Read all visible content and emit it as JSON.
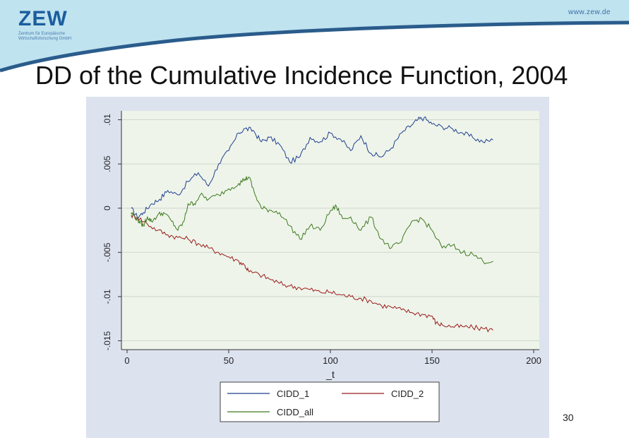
{
  "header": {
    "logo_text": "ZEW",
    "logo_subtitle": "Zentrum für Europäische Wirtschaftsforschung GmbH",
    "website": "www.zew.de"
  },
  "slide": {
    "title": "DD of the Cumulative Incidence Function, 2004",
    "page_number": "30"
  },
  "colors": {
    "banner": "#bfe3ef",
    "chart_background": "#dde2ef",
    "plot_background": "#eef4ea",
    "series_1": "#1f3f8f",
    "series_2": "#9b1c1c",
    "series_all": "#3f7a1f"
  },
  "chart_data": {
    "type": "line",
    "xlabel": "_t",
    "ylabel": "",
    "xlim": [
      0,
      200
    ],
    "ylim": [
      -0.016,
      0.011
    ],
    "x_ticks": [
      0,
      50,
      100,
      150,
      200
    ],
    "x_tick_labels": [
      "0",
      "50",
      "100",
      "150",
      "200"
    ],
    "y_ticks": [
      0.01,
      0.005,
      0,
      -0.005,
      -0.01,
      -0.015
    ],
    "y_tick_labels": [
      ".01",
      ".005",
      "0",
      "-.005",
      "-.01",
      "-.015"
    ],
    "grid": true,
    "legend_position": "bottom",
    "series": [
      {
        "name": "CIDD_1",
        "color": "#1f3f8f",
        "x": [
          2,
          5,
          8,
          12,
          16,
          20,
          25,
          30,
          35,
          40,
          45,
          50,
          55,
          58,
          62,
          66,
          70,
          75,
          80,
          85,
          90,
          95,
          100,
          105,
          110,
          115,
          120,
          125,
          130,
          135,
          140,
          143,
          146,
          150,
          155,
          160,
          165,
          170,
          175,
          180
        ],
        "y": [
          0.0,
          -0.001,
          -0.0005,
          0.0005,
          0.001,
          0.002,
          0.0015,
          0.003,
          0.004,
          0.0025,
          0.005,
          0.0065,
          0.0085,
          0.009,
          0.0088,
          0.0075,
          0.008,
          0.0072,
          0.0052,
          0.0058,
          0.008,
          0.0075,
          0.0085,
          0.0078,
          0.0065,
          0.0082,
          0.0062,
          0.0058,
          0.0068,
          0.0085,
          0.0094,
          0.01,
          0.0102,
          0.0095,
          0.0092,
          0.009,
          0.0085,
          0.008,
          0.0075,
          0.0077
        ]
      },
      {
        "name": "CIDD_2",
        "color": "#9b1c1c",
        "x": [
          2,
          5,
          10,
          15,
          20,
          25,
          30,
          35,
          40,
          45,
          50,
          55,
          58,
          60,
          65,
          70,
          75,
          80,
          85,
          90,
          95,
          100,
          105,
          110,
          115,
          120,
          125,
          130,
          135,
          140,
          145,
          150,
          152,
          155,
          160,
          165,
          170,
          175,
          180
        ],
        "y": [
          -0.0008,
          -0.001,
          -0.0018,
          -0.0025,
          -0.003,
          -0.0033,
          -0.0035,
          -0.004,
          -0.0045,
          -0.005,
          -0.0055,
          -0.006,
          -0.0065,
          -0.0072,
          -0.0075,
          -0.008,
          -0.0085,
          -0.0088,
          -0.009,
          -0.0092,
          -0.0095,
          -0.0095,
          -0.0098,
          -0.01,
          -0.0102,
          -0.0105,
          -0.011,
          -0.0112,
          -0.0115,
          -0.0118,
          -0.012,
          -0.0122,
          -0.013,
          -0.0132,
          -0.0134,
          -0.0134,
          -0.0135,
          -0.0136,
          -0.0138
        ]
      },
      {
        "name": "CIDD_all",
        "color": "#3f7a1f",
        "x": [
          2,
          4,
          6,
          8,
          10,
          12,
          15,
          18,
          22,
          25,
          28,
          30,
          33,
          36,
          40,
          45,
          50,
          55,
          58,
          60,
          63,
          66,
          70,
          75,
          80,
          85,
          90,
          95,
          100,
          103,
          106,
          110,
          115,
          120,
          125,
          130,
          135,
          140,
          145,
          150,
          155,
          160,
          165,
          170,
          175,
          180
        ],
        "y": [
          -0.0005,
          -0.001,
          -0.0015,
          -0.002,
          -0.001,
          -0.0015,
          -0.0008,
          -0.0005,
          -0.0015,
          -0.0025,
          -0.0015,
          0.0005,
          0.0005,
          0.0015,
          0.001,
          0.0015,
          0.0022,
          0.0028,
          0.0033,
          0.0035,
          0.0015,
          0.0,
          -0.0002,
          -0.0005,
          -0.002,
          -0.0035,
          -0.002,
          -0.0025,
          -0.0003,
          0.0002,
          -0.0012,
          -0.001,
          -0.0025,
          -0.001,
          -0.0035,
          -0.0045,
          -0.0038,
          -0.0015,
          -0.0012,
          -0.0025,
          -0.0045,
          -0.0042,
          -0.005,
          -0.0052,
          -0.006,
          -0.006
        ]
      }
    ]
  }
}
